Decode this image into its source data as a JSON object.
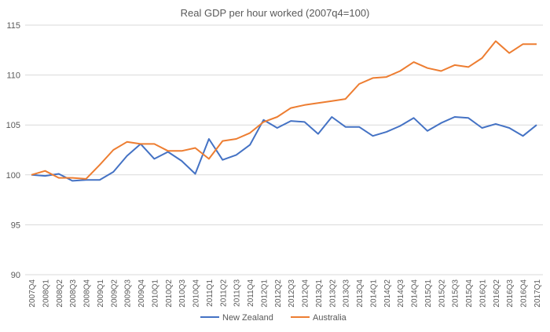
{
  "chart_data": {
    "type": "line",
    "title": "Real GDP per hour worked (2007q4=100)",
    "xlabel": "",
    "ylabel": "",
    "ylim": [
      90,
      115
    ],
    "yticks": [
      90,
      95,
      100,
      105,
      110,
      115
    ],
    "grid": true,
    "legend_position": "bottom",
    "categories": [
      "2007Q4",
      "2008Q1",
      "2008Q2",
      "2008Q3",
      "2008Q4",
      "2009Q1",
      "2009Q2",
      "2009Q3",
      "2009Q4",
      "2010Q1",
      "2010Q2",
      "2010Q3",
      "2010Q4",
      "2011Q1",
      "2011Q2",
      "2011Q3",
      "2011Q4",
      "2012Q1",
      "2012Q2",
      "2012Q3",
      "2012Q4",
      "2013Q1",
      "2013Q2",
      "2013Q3",
      "2013Q4",
      "2014Q1",
      "2014Q2",
      "2014Q3",
      "2014Q4",
      "2015Q1",
      "2015Q2",
      "2015Q3",
      "2015Q4",
      "2016Q1",
      "2016Q2",
      "2016Q3",
      "2016Q4",
      "2017Q1"
    ],
    "series": [
      {
        "name": "New Zealand",
        "color": "#4472C4",
        "values": [
          100,
          99.9,
          100.1,
          99.4,
          99.5,
          99.5,
          100.3,
          101.9,
          103.1,
          101.6,
          102.3,
          101.4,
          100.1,
          103.6,
          101.5,
          102.0,
          103.0,
          105.5,
          104.7,
          105.4,
          105.3,
          104.1,
          105.8,
          104.8,
          104.8,
          103.9,
          104.3,
          104.9,
          105.7,
          104.4,
          105.2,
          105.8,
          105.7,
          104.7,
          105.1,
          104.7,
          103.9,
          105.0
        ]
      },
      {
        "name": "Australia",
        "color": "#ED7D31",
        "values": [
          100,
          100.4,
          99.7,
          99.7,
          99.6,
          101.0,
          102.5,
          103.3,
          103.1,
          103.1,
          102.4,
          102.4,
          102.7,
          101.6,
          103.4,
          103.6,
          104.2,
          105.3,
          105.8,
          106.7,
          107.0,
          107.2,
          107.4,
          107.6,
          109.1,
          109.7,
          109.8,
          110.4,
          111.3,
          110.7,
          110.4,
          111.0,
          110.8,
          111.7,
          113.4,
          112.2,
          113.1,
          113.1
        ]
      }
    ]
  }
}
